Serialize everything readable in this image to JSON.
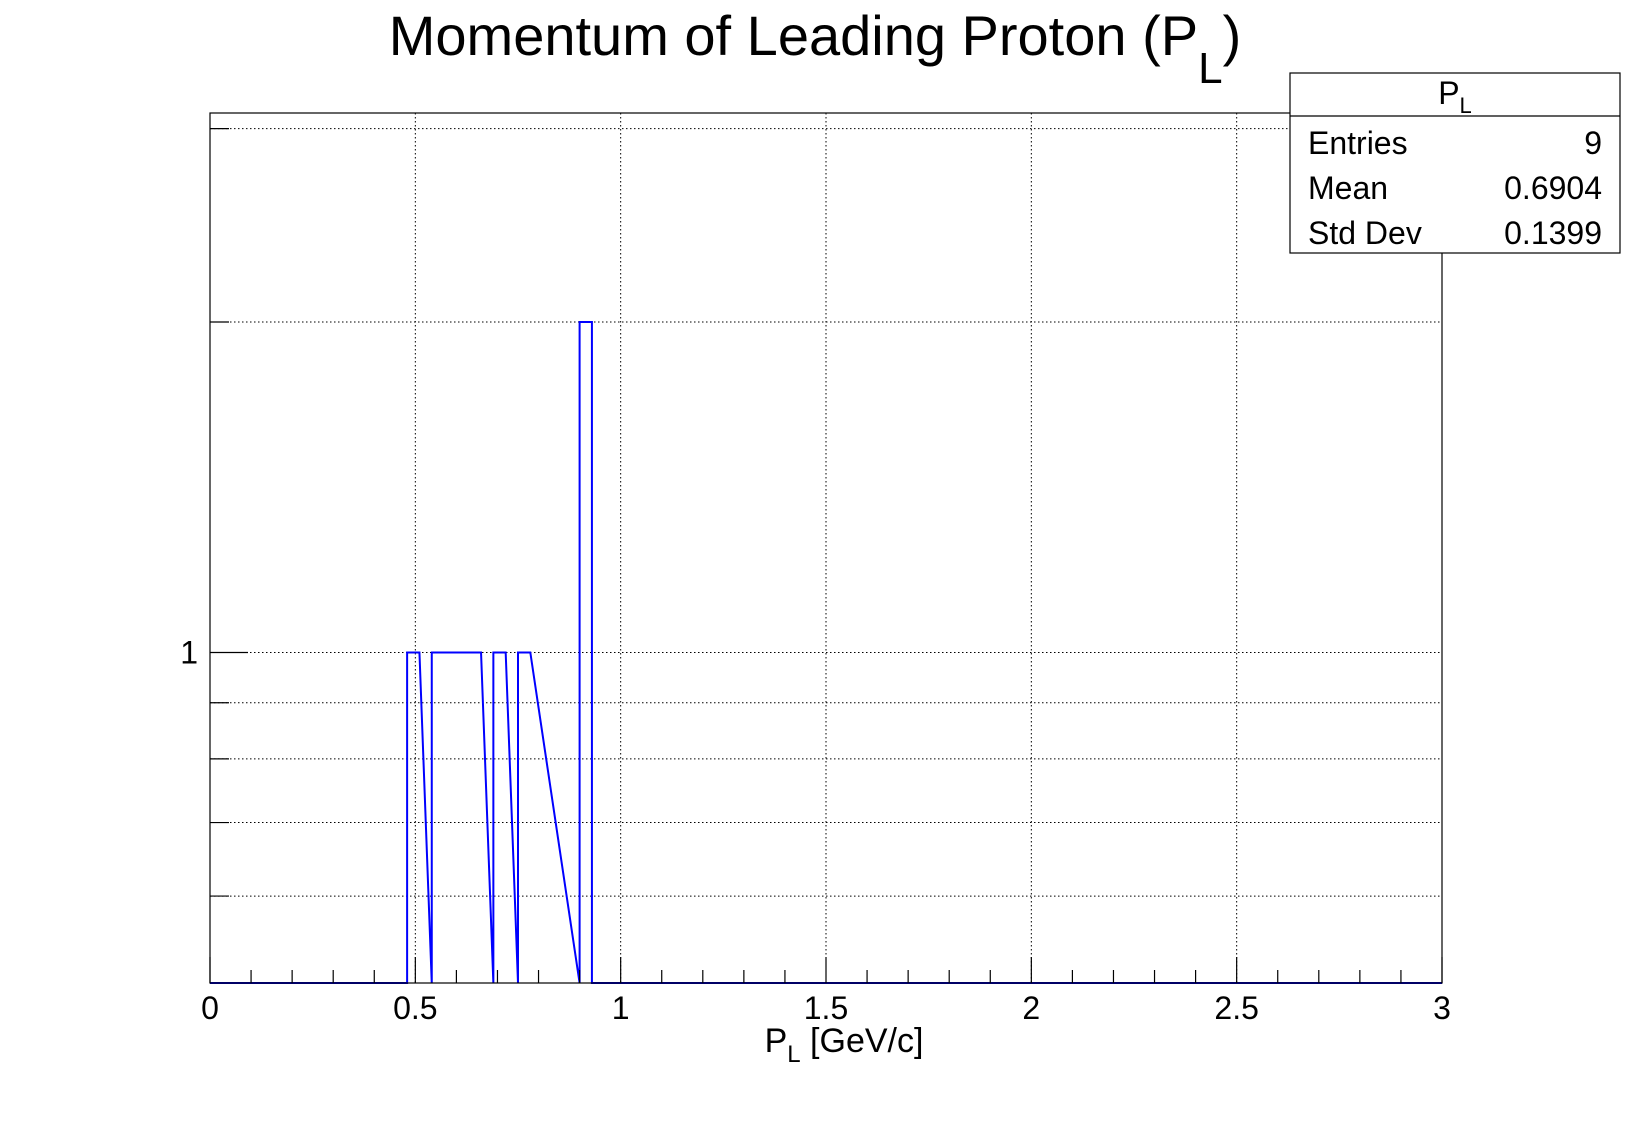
{
  "chart_data": {
    "type": "histogram",
    "title": {
      "main": "Momentum of Leading Proton (P",
      "sub": "L",
      "close": ")"
    },
    "xlabel": {
      "main": "P",
      "sub": "L",
      "rest": " [GeV/c]"
    },
    "ylabel": "",
    "xlim": [
      0,
      3
    ],
    "ylim": [
      0.5,
      3.1
    ],
    "y_scale": "log",
    "grid": true,
    "x_ticks": [
      {
        "value": 0,
        "label": "0"
      },
      {
        "value": 0.5,
        "label": "0.5"
      },
      {
        "value": 1,
        "label": "1"
      },
      {
        "value": 1.5,
        "label": "1.5"
      },
      {
        "value": 2,
        "label": "2"
      },
      {
        "value": 2.5,
        "label": "2.5"
      },
      {
        "value": 3,
        "label": "3"
      }
    ],
    "y_ticks": [
      {
        "value": 1,
        "label": "1"
      }
    ],
    "y_minor_ticks": [
      0.6,
      0.7,
      0.8,
      0.9,
      2,
      3
    ],
    "bin_width": 0.03,
    "bins": [
      {
        "low": 0.48,
        "high": 0.51,
        "count": 1
      },
      {
        "low": 0.54,
        "high": 0.57,
        "count": 1
      },
      {
        "low": 0.57,
        "high": 0.6,
        "count": 1
      },
      {
        "low": 0.6,
        "high": 0.63,
        "count": 1
      },
      {
        "low": 0.63,
        "high": 0.66,
        "count": 1
      },
      {
        "low": 0.69,
        "high": 0.72,
        "count": 1
      },
      {
        "low": 0.75,
        "high": 0.78,
        "count": 1
      },
      {
        "low": 0.9,
        "high": 0.93,
        "count": 2
      }
    ],
    "line_color": "#0000ff",
    "stats_box": {
      "title_main": "P",
      "title_sub": "L",
      "rows": [
        {
          "label": "Entries",
          "value": "9"
        },
        {
          "label": "Mean",
          "value": "0.6904"
        },
        {
          "label": "Std Dev",
          "value": "0.1399"
        }
      ]
    }
  }
}
